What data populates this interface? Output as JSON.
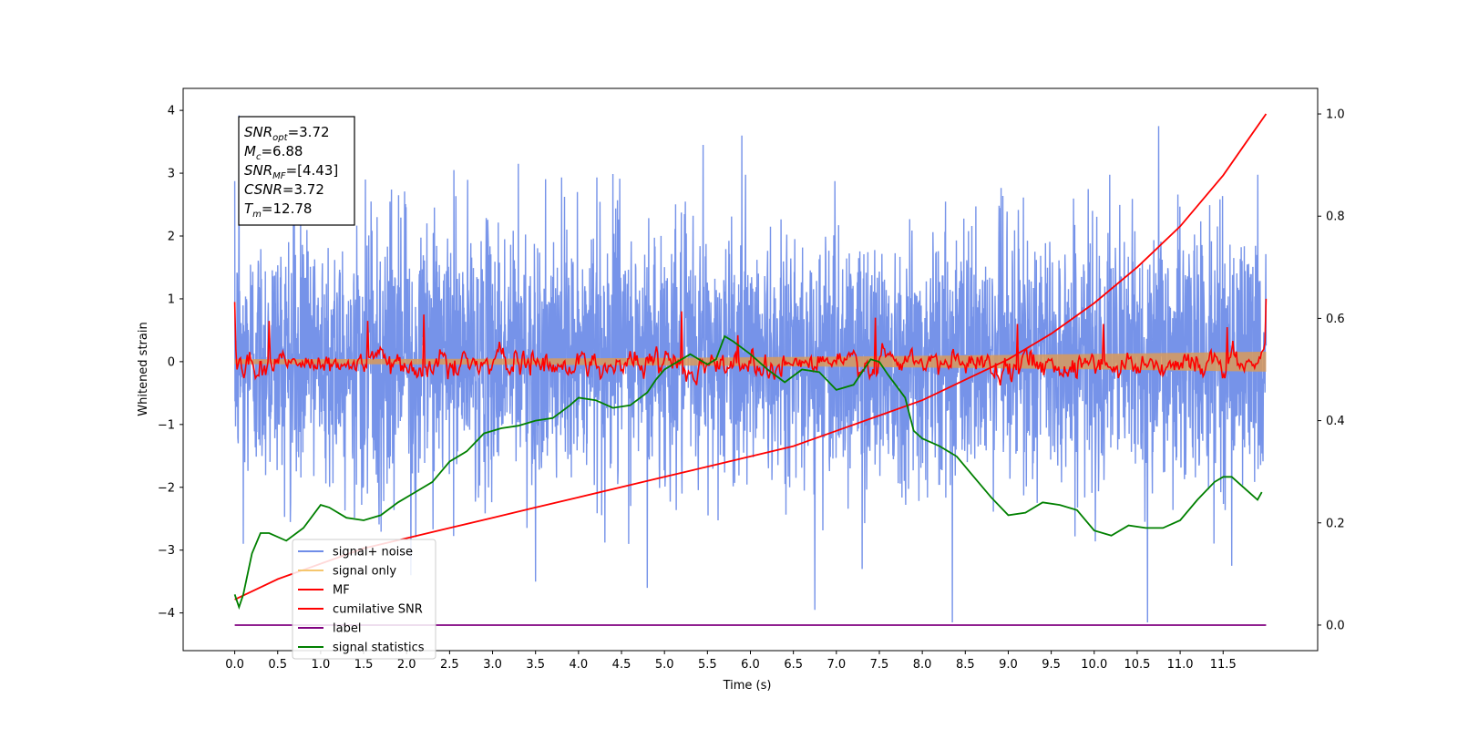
{
  "chart_data": {
    "type": "line",
    "title": "",
    "xlabel": "Time (s)",
    "ylabel": "Whitened strain",
    "xlim": [
      -0.6,
      12.6
    ],
    "ylim": [
      -4.6,
      4.35
    ],
    "ylim_right": [
      -0.05,
      1.05
    ],
    "x_ticks": [
      "0.0",
      "0.5",
      "1.0",
      "1.5",
      "2.0",
      "2.5",
      "3.0",
      "3.5",
      "4.0",
      "4.5",
      "5.0",
      "5.5",
      "6.0",
      "6.5",
      "7.0",
      "7.5",
      "8.0",
      "8.5",
      "9.0",
      "9.5",
      "10.0",
      "10.5",
      "11.0",
      "11.5"
    ],
    "y_ticks": [
      "−4",
      "−3",
      "−2",
      "−1",
      "0",
      "1",
      "2",
      "3",
      "4"
    ],
    "y_ticks_right": [
      "0.0",
      "0.2",
      "0.4",
      "0.6",
      "0.8",
      "1.0"
    ],
    "grid": false,
    "legend_position": "lower-left",
    "stats_box": {
      "lines": [
        {
          "sym": "SNR",
          "sub": "opt",
          "val": "=3.72"
        },
        {
          "sym": "M",
          "sub": "c",
          "val": "=6.88"
        },
        {
          "sym": "SNR",
          "sub": "MF",
          "val": "=[4.43]"
        },
        {
          "sym": "CSNR",
          "sub": "",
          "val": "=3.72"
        },
        {
          "sym": "T",
          "sub": "m",
          "val": "=12.78"
        }
      ]
    },
    "series": [
      {
        "name": "signal+ noise",
        "color": "#6f8de8",
        "axis": "left",
        "style": "noise",
        "x_range": [
          0,
          12
        ],
        "center": 0.1,
        "spread": 1.0,
        "spikes": [
          [
            0.05,
            3.92
          ],
          [
            0.1,
            -2.9
          ],
          [
            2.05,
            -3.4
          ],
          [
            2.55,
            3.05
          ],
          [
            3.3,
            3.15
          ],
          [
            3.5,
            -3.5
          ],
          [
            4.8,
            -3.6
          ],
          [
            5.45,
            3.45
          ],
          [
            5.9,
            3.6
          ],
          [
            6.75,
            -3.95
          ],
          [
            7.3,
            -3.3
          ],
          [
            8.35,
            -4.15
          ],
          [
            10.62,
            -4.15
          ],
          [
            10.75,
            3.75
          ],
          [
            11.6,
            -3.25
          ]
        ]
      },
      {
        "name": "signal only",
        "color": "#f5c66e",
        "axis": "left",
        "style": "band",
        "x_range": [
          0,
          12
        ],
        "amp_start": 0.04,
        "amp_end": 0.16
      },
      {
        "name": "MF",
        "color": "#ff0000",
        "axis": "left",
        "style": "mf",
        "x_range": [
          0,
          12
        ],
        "start": 0.95,
        "end": 1.0,
        "peaks": [
          [
            0.4,
            0.65
          ],
          [
            1.55,
            0.65
          ],
          [
            2.2,
            0.75
          ],
          [
            5.2,
            0.8
          ],
          [
            5.85,
            0.42
          ],
          [
            7.45,
            0.7
          ],
          [
            9.1,
            0.6
          ],
          [
            10.1,
            0.6
          ],
          [
            11.55,
            0.55
          ]
        ]
      },
      {
        "name": "cumilative SNR",
        "color": "#ff0000",
        "axis": "right",
        "x": [
          0,
          0.5,
          1,
          1.5,
          2,
          2.5,
          3,
          3.5,
          4,
          4.5,
          5,
          5.5,
          6,
          6.5,
          7,
          7.5,
          8,
          8.5,
          9,
          9.5,
          10,
          10.5,
          11,
          11.5,
          11.75,
          12
        ],
        "y": [
          0.05,
          0.09,
          0.12,
          0.15,
          0.17,
          0.19,
          0.21,
          0.23,
          0.25,
          0.27,
          0.29,
          0.31,
          0.33,
          0.35,
          0.38,
          0.41,
          0.44,
          0.48,
          0.52,
          0.57,
          0.63,
          0.7,
          0.78,
          0.88,
          0.94,
          1.0
        ]
      },
      {
        "name": "label",
        "color": "#800080",
        "axis": "right",
        "x": [
          0,
          12
        ],
        "y": [
          0.0,
          0.0
        ]
      },
      {
        "name": "signal statistics",
        "color": "#008000",
        "axis": "right",
        "x": [
          0,
          0.05,
          0.1,
          0.2,
          0.3,
          0.4,
          0.6,
          0.8,
          1.0,
          1.1,
          1.3,
          1.5,
          1.7,
          1.9,
          2.1,
          2.3,
          2.5,
          2.7,
          2.9,
          3.1,
          3.3,
          3.5,
          3.7,
          3.9,
          4.0,
          4.2,
          4.4,
          4.6,
          4.8,
          4.9,
          5.0,
          5.2,
          5.3,
          5.5,
          5.6,
          5.7,
          5.8,
          6.0,
          6.2,
          6.4,
          6.6,
          6.8,
          7.0,
          7.2,
          7.4,
          7.5,
          7.6,
          7.8,
          7.9,
          8.0,
          8.2,
          8.4,
          8.6,
          8.8,
          9.0,
          9.2,
          9.4,
          9.6,
          9.8,
          10.0,
          10.2,
          10.4,
          10.6,
          10.8,
          11.0,
          11.2,
          11.4,
          11.5,
          11.6,
          11.8,
          11.9,
          11.95
        ],
        "y": [
          0.06,
          0.035,
          0.06,
          0.14,
          0.18,
          0.18,
          0.165,
          0.19,
          0.235,
          0.23,
          0.21,
          0.205,
          0.215,
          0.24,
          0.26,
          0.28,
          0.32,
          0.34,
          0.375,
          0.385,
          0.39,
          0.4,
          0.405,
          0.43,
          0.445,
          0.44,
          0.425,
          0.43,
          0.455,
          0.48,
          0.5,
          0.52,
          0.53,
          0.51,
          0.52,
          0.565,
          0.555,
          0.53,
          0.5,
          0.475,
          0.5,
          0.495,
          0.46,
          0.47,
          0.52,
          0.515,
          0.49,
          0.445,
          0.38,
          0.365,
          0.35,
          0.33,
          0.29,
          0.25,
          0.215,
          0.22,
          0.24,
          0.235,
          0.225,
          0.185,
          0.175,
          0.195,
          0.19,
          0.19,
          0.205,
          0.245,
          0.28,
          0.29,
          0.29,
          0.26,
          0.245,
          0.26
        ]
      }
    ]
  }
}
